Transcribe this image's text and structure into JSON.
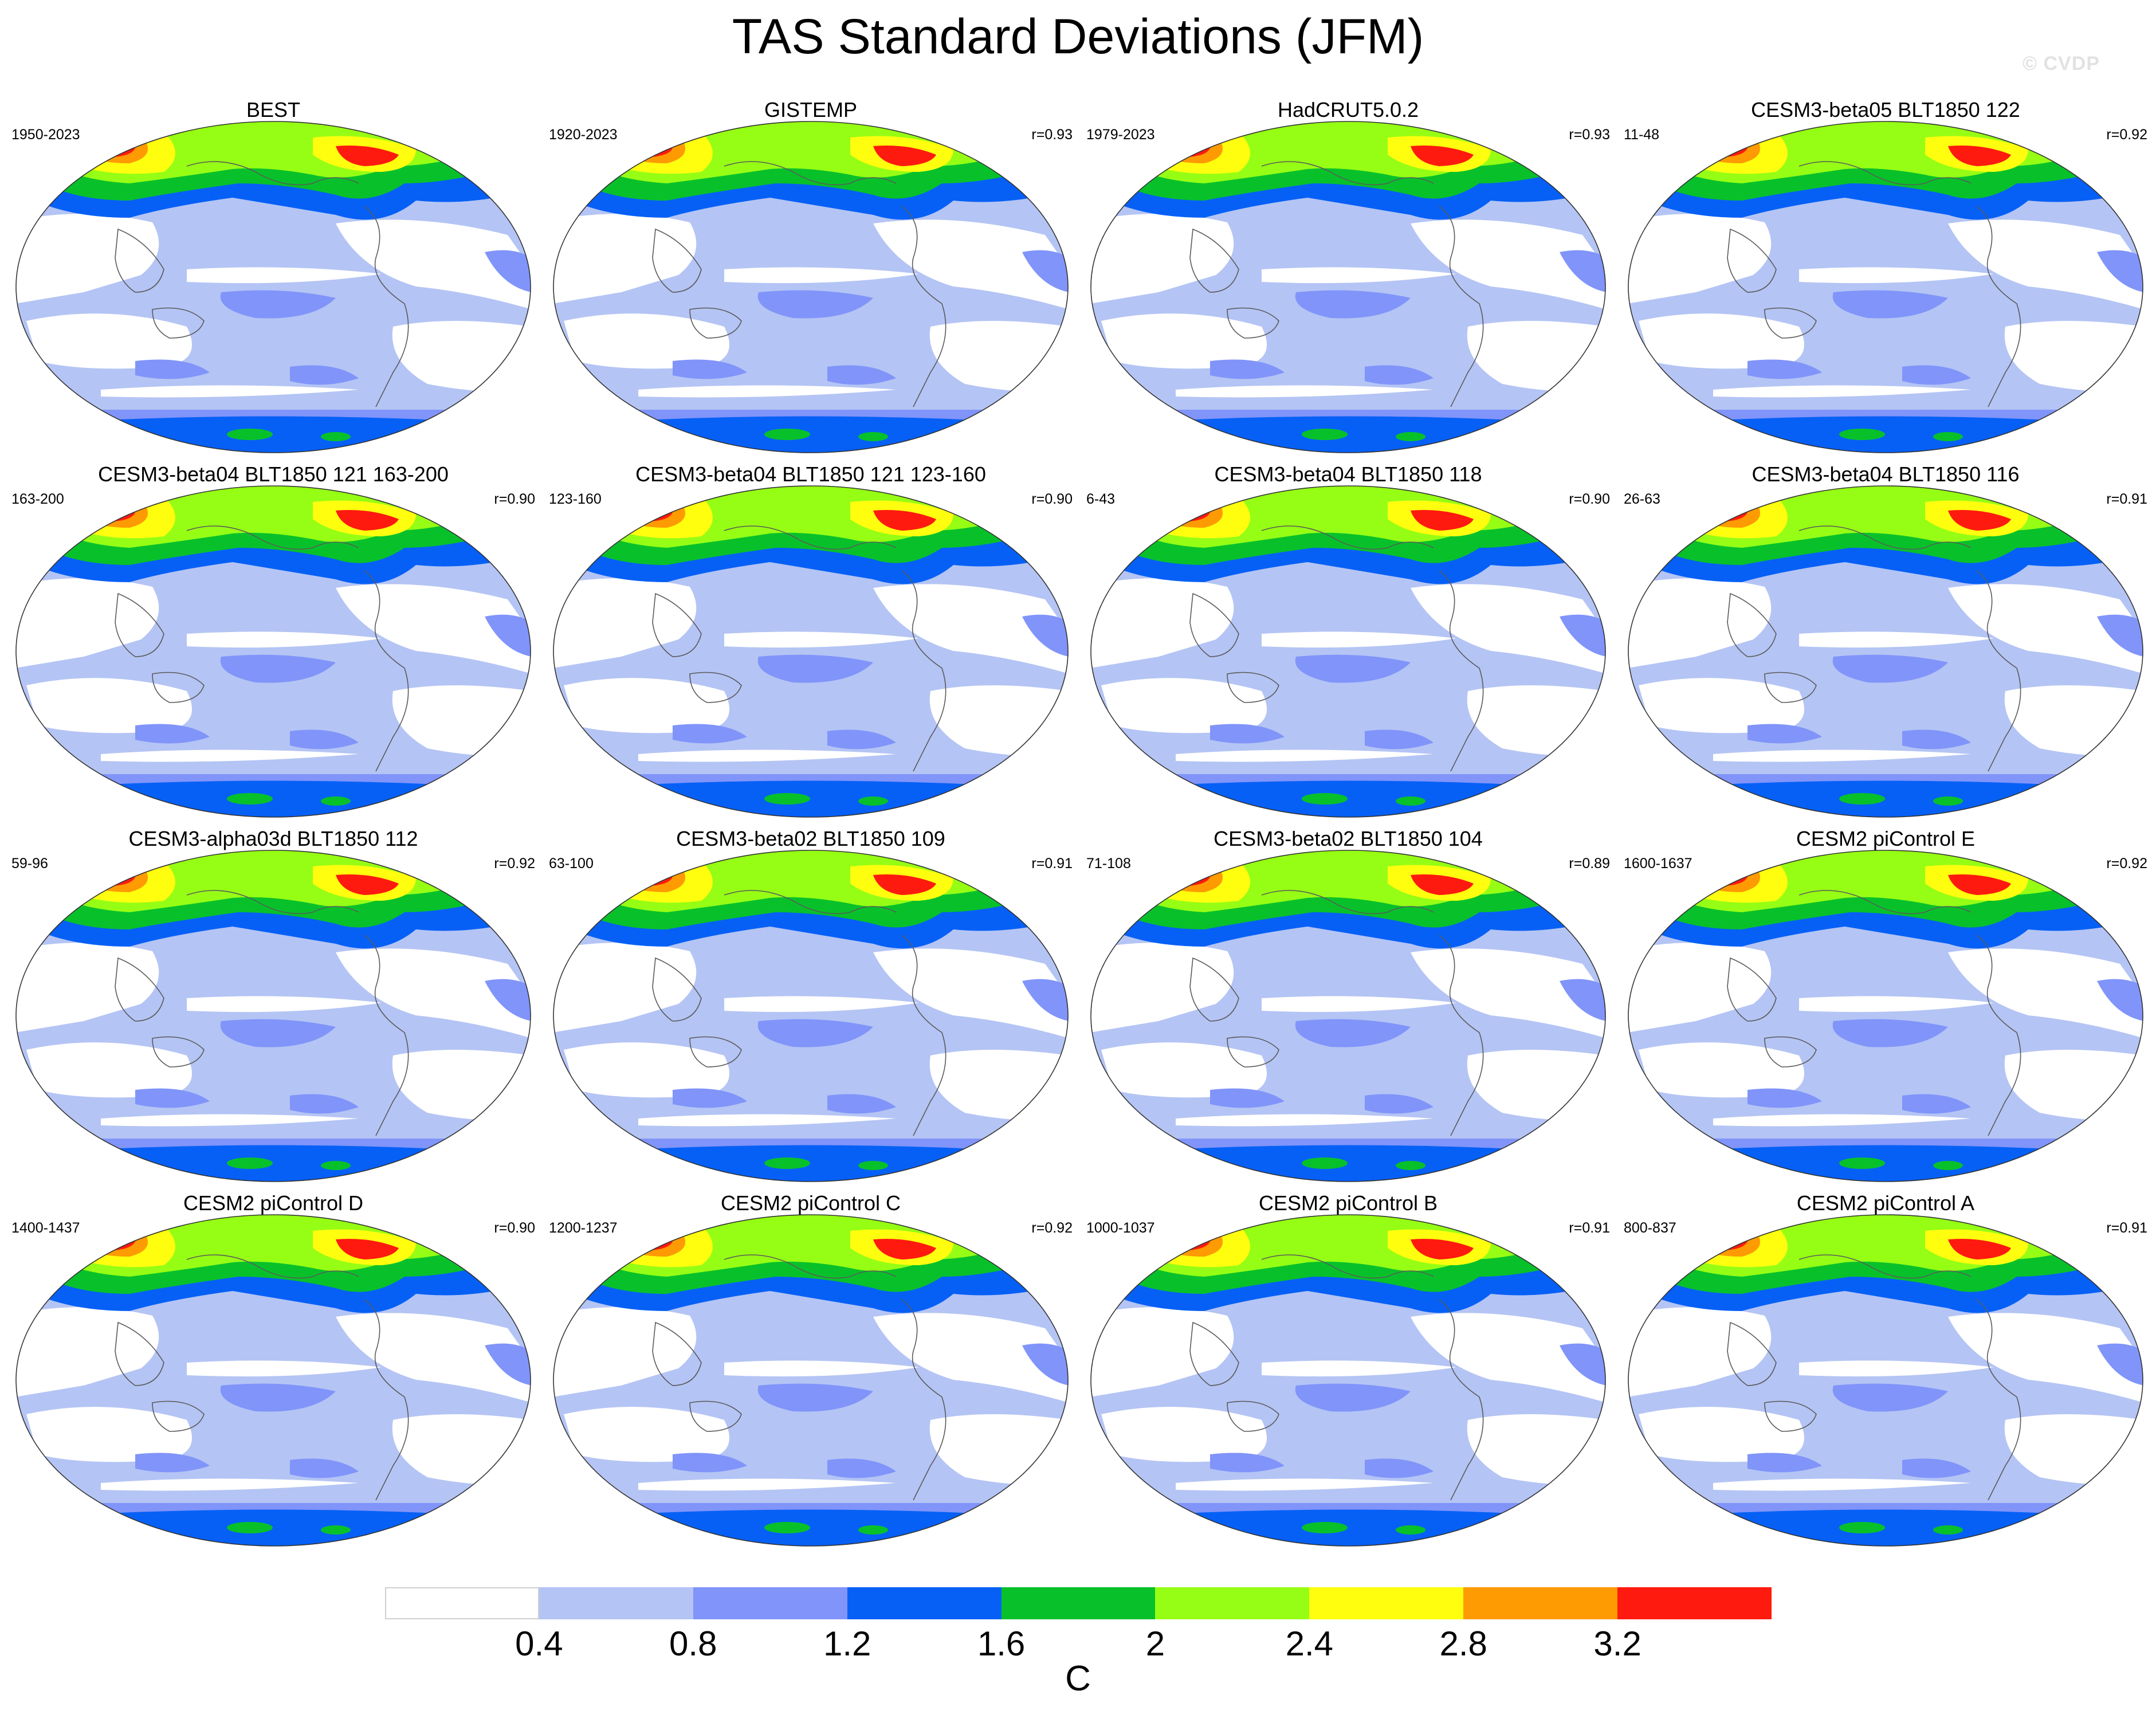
{
  "title": "TAS Standard Deviations (JFM)",
  "watermark": "© CVDP",
  "panels": [
    {
      "title": "BEST",
      "period": "1950-2023",
      "r": ""
    },
    {
      "title": "GISTEMP",
      "period": "1920-2023",
      "r": "r=0.93"
    },
    {
      "title": "HadCRUT5.0.2",
      "period": "1979-2023",
      "r": "r=0.93"
    },
    {
      "title": "CESM3-beta05 BLT1850 122",
      "period": "11-48",
      "r": "r=0.92"
    },
    {
      "title": "CESM3-beta04 BLT1850 121 163-200",
      "period": "163-200",
      "r": "r=0.90"
    },
    {
      "title": "CESM3-beta04 BLT1850 121 123-160",
      "period": "123-160",
      "r": "r=0.90"
    },
    {
      "title": "CESM3-beta04 BLT1850 118",
      "period": "6-43",
      "r": "r=0.90"
    },
    {
      "title": "CESM3-beta04 BLT1850 116",
      "period": "26-63",
      "r": "r=0.91"
    },
    {
      "title": "CESM3-alpha03d BLT1850 112",
      "period": "59-96",
      "r": "r=0.92"
    },
    {
      "title": "CESM3-beta02 BLT1850 109",
      "period": "63-100",
      "r": "r=0.91"
    },
    {
      "title": "CESM3-beta02 BLT1850 104",
      "period": "71-108",
      "r": "r=0.89"
    },
    {
      "title": "CESM2 piControl E",
      "period": "1600-1637",
      "r": "r=0.92"
    },
    {
      "title": "CESM2 piControl D",
      "period": "1400-1437",
      "r": "r=0.90"
    },
    {
      "title": "CESM2 piControl C",
      "period": "1200-1237",
      "r": "r=0.92"
    },
    {
      "title": "CESM2 piControl B",
      "period": "1000-1037",
      "r": "r=0.91"
    },
    {
      "title": "CESM2 piControl A",
      "period": "800-837",
      "r": "r=0.91"
    }
  ],
  "colorbar": {
    "colors": [
      "#ffffff",
      "#b4c4f4",
      "#8094fa",
      "#0660f6",
      "#08c12a",
      "#96fe14",
      "#fefe0e",
      "#fe9a02",
      "#fe1a0e"
    ],
    "ticks": [
      "0.4",
      "0.8",
      "1.2",
      "1.6",
      "2",
      "2.4",
      "2.8",
      "3.2"
    ],
    "unit": "C"
  }
}
